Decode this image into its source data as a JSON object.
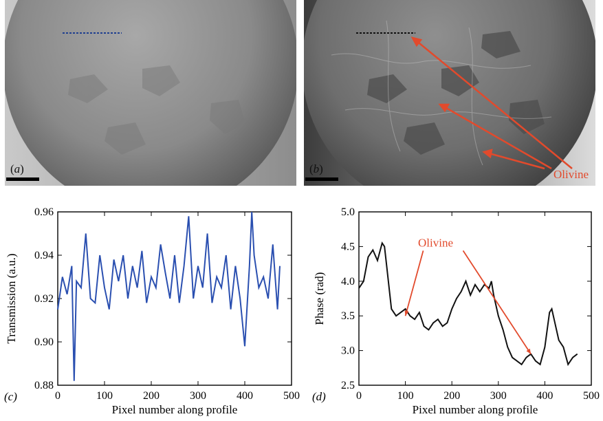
{
  "figure": {
    "panel_a": {
      "letter": "a",
      "scale_bar": true
    },
    "panel_b": {
      "letter": "b",
      "scale_bar": true,
      "annotation": "Olivine",
      "annotation_color": "#e24a2c"
    },
    "profile_line_colors": {
      "a": "#1f3f8f",
      "b": "#111111"
    }
  },
  "chart_data": [
    {
      "panel": "c",
      "type": "line",
      "xlabel": "Pixel number along profile",
      "ylabel": "Transmission (a.u.)",
      "xlim": [
        0,
        500
      ],
      "ylim": [
        0.88,
        0.96
      ],
      "xticks": [
        0,
        100,
        200,
        300,
        400,
        500
      ],
      "yticks": [
        "0.88",
        "0.90",
        "0.92",
        "0.94",
        "0.96"
      ],
      "grid": false,
      "color": "#2a4fb0",
      "series": [
        {
          "x": [
            0,
            10,
            20,
            30,
            35,
            40,
            50,
            60,
            70,
            80,
            90,
            100,
            110,
            120,
            130,
            140,
            150,
            160,
            170,
            180,
            190,
            200,
            210,
            220,
            230,
            240,
            250,
            260,
            270,
            280,
            290,
            300,
            310,
            320,
            330,
            340,
            350,
            360,
            370,
            380,
            390,
            400,
            410,
            415,
            420,
            430,
            440,
            450,
            460,
            470,
            475
          ],
          "y": [
            0.915,
            0.93,
            0.922,
            0.935,
            0.882,
            0.928,
            0.925,
            0.95,
            0.92,
            0.918,
            0.94,
            0.925,
            0.915,
            0.938,
            0.928,
            0.94,
            0.92,
            0.935,
            0.925,
            0.942,
            0.918,
            0.93,
            0.925,
            0.945,
            0.932,
            0.92,
            0.94,
            0.918,
            0.935,
            0.958,
            0.92,
            0.935,
            0.925,
            0.95,
            0.918,
            0.93,
            0.925,
            0.94,
            0.915,
            0.935,
            0.92,
            0.898,
            0.935,
            0.96,
            0.94,
            0.925,
            0.93,
            0.92,
            0.945,
            0.915,
            0.935
          ]
        }
      ]
    },
    {
      "panel": "d",
      "type": "line",
      "xlabel": "Pixel number along profile",
      "ylabel": "Phase (rad)",
      "xlim": [
        0,
        500
      ],
      "ylim": [
        2.5,
        5.0
      ],
      "xticks": [
        0,
        100,
        200,
        300,
        400,
        500
      ],
      "yticks": [
        "2.5",
        "3.0",
        "3.5",
        "4.0",
        "4.5",
        "5.0"
      ],
      "grid": false,
      "color": "#111111",
      "annotation": {
        "text": "Olivine",
        "color": "#e24a2c",
        "points": [
          [
            100,
            3.5
          ],
          [
            370,
            2.95
          ]
        ],
        "label_at": [
          165,
          4.5
        ]
      },
      "series": [
        {
          "x": [
            0,
            10,
            20,
            30,
            40,
            50,
            55,
            60,
            70,
            80,
            90,
            100,
            110,
            120,
            130,
            140,
            150,
            160,
            170,
            180,
            190,
            200,
            210,
            220,
            230,
            240,
            250,
            260,
            270,
            280,
            285,
            290,
            300,
            310,
            320,
            330,
            340,
            350,
            360,
            370,
            380,
            390,
            400,
            410,
            415,
            420,
            430,
            440,
            450,
            460,
            470
          ],
          "y": [
            3.9,
            4.0,
            4.35,
            4.45,
            4.3,
            4.55,
            4.5,
            4.2,
            3.6,
            3.5,
            3.55,
            3.6,
            3.5,
            3.45,
            3.55,
            3.35,
            3.3,
            3.4,
            3.45,
            3.35,
            3.4,
            3.6,
            3.75,
            3.85,
            4.0,
            3.8,
            3.95,
            3.85,
            3.95,
            3.9,
            4.0,
            3.8,
            3.5,
            3.3,
            3.05,
            2.9,
            2.85,
            2.8,
            2.9,
            2.95,
            2.85,
            2.8,
            3.05,
            3.55,
            3.6,
            3.45,
            3.15,
            3.05,
            2.8,
            2.9,
            2.95
          ]
        }
      ]
    }
  ]
}
